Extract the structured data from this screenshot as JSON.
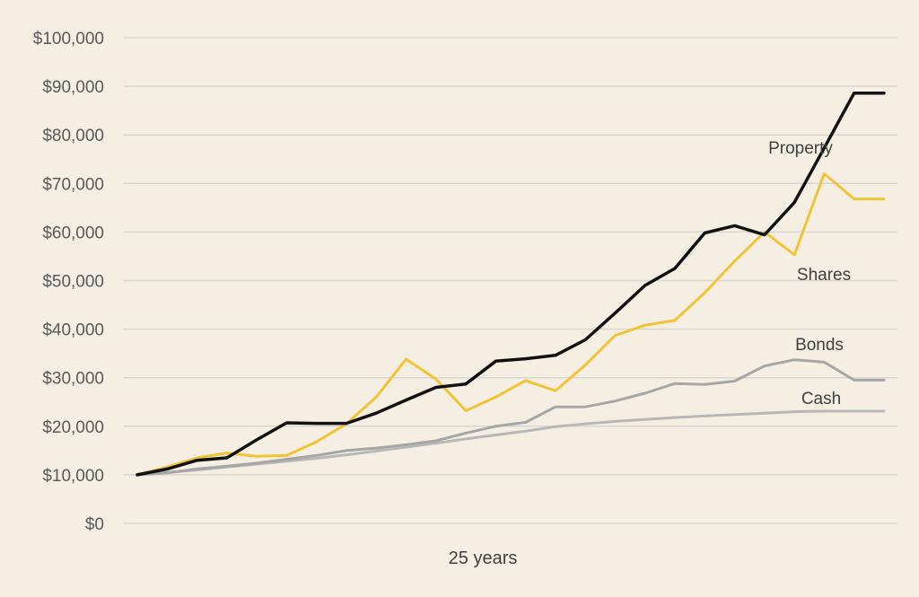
{
  "chart_data": {
    "type": "line",
    "xlabel": "25 years",
    "ylim": [
      0,
      100000
    ],
    "yticks": [
      0,
      10000,
      20000,
      30000,
      40000,
      50000,
      60000,
      70000,
      80000,
      90000,
      100000
    ],
    "ytick_labels": [
      "$0",
      "$10,000",
      "$20,000",
      "$30,000",
      "$40,000",
      "$50,000",
      "$60,000",
      "$70,000",
      "$80,000",
      "$90,000",
      "$100,000"
    ],
    "grid": true,
    "legend": "inline labels",
    "x": [
      0,
      1,
      2,
      3,
      4,
      5,
      6,
      7,
      8,
      9,
      10,
      11,
      12,
      13,
      14,
      15,
      16,
      17,
      18,
      19,
      20,
      21,
      22,
      23,
      24,
      25
    ],
    "series": [
      {
        "name": "Cash",
        "color": "#b8b8b8",
        "values": [
          10000,
          10500,
          11000,
          11600,
          12200,
          12800,
          13400,
          14100,
          14900,
          15700,
          16500,
          17400,
          18200,
          19000,
          19900,
          20500,
          21000,
          21400,
          21800,
          22100,
          22400,
          22700,
          23000,
          23100,
          23100,
          23100
        ]
      },
      {
        "name": "Bonds",
        "color": "#a6a6a6",
        "values": [
          10000,
          10400,
          11200,
          11800,
          12400,
          13200,
          14000,
          15000,
          15500,
          16200,
          17000,
          18600,
          20000,
          20800,
          24000,
          24000,
          25200,
          26800,
          28800,
          28600,
          29300,
          32400,
          33700,
          33200,
          29500,
          29500
        ]
      },
      {
        "name": "Shares",
        "color": "#f2c335",
        "values": [
          10000,
          11600,
          13500,
          14500,
          13800,
          14000,
          16800,
          20500,
          26000,
          33800,
          29700,
          23200,
          26000,
          29400,
          27300,
          32600,
          38700,
          40800,
          41800,
          47500,
          54000,
          60000,
          55300,
          72000,
          66800,
          66800
        ]
      },
      {
        "name": "Property",
        "color": "#111111",
        "values": [
          10000,
          11200,
          13000,
          13500,
          17200,
          20700,
          20600,
          20600,
          22700,
          25400,
          28000,
          28700,
          33400,
          33900,
          34600,
          37800,
          43300,
          49000,
          52500,
          59800,
          61300,
          59400,
          66100,
          77300,
          88600,
          88600
        ]
      }
    ]
  }
}
